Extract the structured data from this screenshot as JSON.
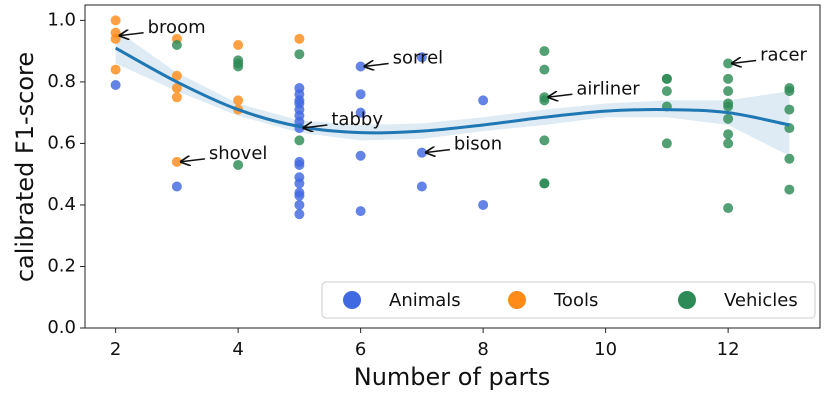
{
  "chart_data": {
    "type": "scatter",
    "xlabel": "Number of parts",
    "ylabel": "calibrated F1-score",
    "xlim": [
      1.5,
      13.5
    ],
    "ylim": [
      0,
      1.05
    ],
    "xticks": [
      2,
      4,
      6,
      8,
      10,
      12
    ],
    "yticks": [
      {
        "value": 0,
        "label": "0.0"
      },
      0.2,
      0.4,
      0.6,
      0.8,
      {
        "value": 1,
        "label": "1.0"
      }
    ],
    "legend": "lower right",
    "series": [
      {
        "name": "Animals",
        "color": "#4169e1",
        "x": [
          2,
          3,
          5,
          5,
          5,
          5,
          5,
          5,
          5,
          5,
          5,
          5,
          5,
          5,
          5,
          5,
          5,
          5,
          6,
          6,
          6,
          6,
          6,
          7,
          7,
          7,
          8,
          8
        ],
        "values": [
          0.79,
          0.46,
          0.78,
          0.76,
          0.74,
          0.73,
          0.71,
          0.69,
          0.67,
          0.65,
          0.54,
          0.53,
          0.49,
          0.47,
          0.44,
          0.43,
          0.4,
          0.37,
          0.85,
          0.76,
          0.7,
          0.56,
          0.38,
          0.88,
          0.57,
          0.46,
          0.74,
          0.4
        ]
      },
      {
        "name": "Tools",
        "color": "#ff8c1a",
        "x": [
          2,
          2,
          2,
          2,
          3,
          3,
          3,
          3,
          3,
          4,
          4,
          4,
          5
        ],
        "values": [
          1.0,
          0.96,
          0.94,
          0.84,
          0.94,
          0.82,
          0.78,
          0.75,
          0.54,
          0.92,
          0.74,
          0.71,
          0.94
        ]
      },
      {
        "name": "Vehicles",
        "color": "#2e8b57",
        "x": [
          3,
          4,
          4,
          4,
          4,
          5,
          5,
          9,
          9,
          9,
          9,
          9,
          9,
          9,
          11,
          11,
          11,
          11,
          11,
          12,
          12,
          12,
          12,
          12,
          12,
          12,
          12,
          12,
          13,
          13,
          13,
          13,
          13,
          13
        ],
        "values": [
          0.92,
          0.87,
          0.86,
          0.85,
          0.53,
          0.89,
          0.61,
          0.9,
          0.84,
          0.75,
          0.74,
          0.61,
          0.47,
          0.47,
          0.81,
          0.81,
          0.77,
          0.72,
          0.6,
          0.86,
          0.81,
          0.77,
          0.73,
          0.72,
          0.68,
          0.63,
          0.6,
          0.39,
          0.78,
          0.77,
          0.71,
          0.65,
          0.55,
          0.45
        ]
      }
    ],
    "fit": {
      "color": "#1f77b4",
      "x": [
        2,
        3,
        4,
        5,
        6,
        7,
        8,
        9,
        10,
        11,
        12,
        13
      ],
      "values": [
        0.91,
        0.8,
        0.71,
        0.655,
        0.635,
        0.64,
        0.66,
        0.685,
        0.705,
        0.71,
        0.7,
        0.66
      ],
      "lower": [
        0.86,
        0.77,
        0.69,
        0.635,
        0.61,
        0.615,
        0.64,
        0.66,
        0.685,
        0.685,
        0.66,
        0.56
      ],
      "upper": [
        0.97,
        0.83,
        0.73,
        0.675,
        0.66,
        0.665,
        0.685,
        0.71,
        0.73,
        0.74,
        0.74,
        0.77
      ]
    },
    "annotations": [
      {
        "text": "broom",
        "x": 2,
        "y": 0.95
      },
      {
        "text": "shovel",
        "x": 3,
        "y": 0.54
      },
      {
        "text": "tabby",
        "x": 5,
        "y": 0.65
      },
      {
        "text": "sorrel",
        "x": 6,
        "y": 0.85
      },
      {
        "text": "bison",
        "x": 7,
        "y": 0.57
      },
      {
        "text": "airliner",
        "x": 9,
        "y": 0.75
      },
      {
        "text": "racer",
        "x": 12,
        "y": 0.86
      }
    ]
  }
}
